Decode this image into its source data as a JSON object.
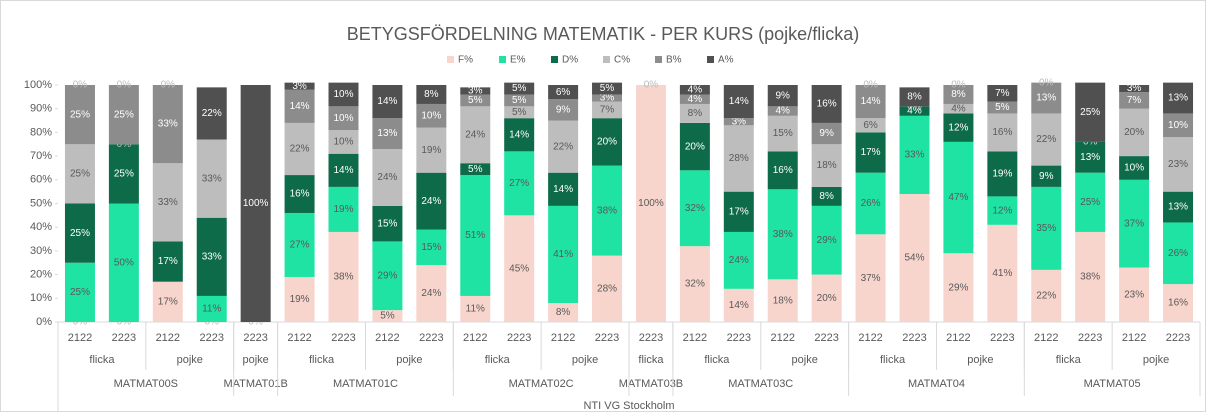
{
  "chart_data": {
    "type": "stacked_bar",
    "title": "BETYGSFÖRDELNING MATEMATIK - PER KURS (pojke/flicka)",
    "categories": [
      {
        "course": "MATMAT00S",
        "gender": "flicka",
        "year": "2122"
      },
      {
        "course": "MATMAT00S",
        "gender": "flicka",
        "year": "2223"
      },
      {
        "course": "MATMAT00S",
        "gender": "pojke",
        "year": "2122"
      },
      {
        "course": "MATMAT00S",
        "gender": "pojke",
        "year": "2223"
      },
      {
        "course": "MATMAT01B",
        "gender": "pojke",
        "year": "2223"
      },
      {
        "course": "MATMAT01C",
        "gender": "flicka",
        "year": "2122"
      },
      {
        "course": "MATMAT01C",
        "gender": "flicka",
        "year": "2223"
      },
      {
        "course": "MATMAT01C",
        "gender": "pojke",
        "year": "2122"
      },
      {
        "course": "MATMAT01C",
        "gender": "pojke",
        "year": "2223"
      },
      {
        "course": "MATMAT02C",
        "gender": "flicka",
        "year": "2122"
      },
      {
        "course": "MATMAT02C",
        "gender": "flicka",
        "year": "2223"
      },
      {
        "course": "MATMAT02C",
        "gender": "pojke",
        "year": "2122"
      },
      {
        "course": "MATMAT02C",
        "gender": "pojke",
        "year": "2223"
      },
      {
        "course": "MATMAT03B",
        "gender": "flicka",
        "year": "2223"
      },
      {
        "course": "MATMAT03C",
        "gender": "flicka",
        "year": "2122"
      },
      {
        "course": "MATMAT03C",
        "gender": "flicka",
        "year": "2223"
      },
      {
        "course": "MATMAT03C",
        "gender": "pojke",
        "year": "2122"
      },
      {
        "course": "MATMAT03C",
        "gender": "pojke",
        "year": "2223"
      },
      {
        "course": "MATMAT04",
        "gender": "flicka",
        "year": "2122"
      },
      {
        "course": "MATMAT04",
        "gender": "flicka",
        "year": "2223"
      },
      {
        "course": "MATMAT04",
        "gender": "pojke",
        "year": "2122"
      },
      {
        "course": "MATMAT04",
        "gender": "pojke",
        "year": "2223"
      },
      {
        "course": "MATMAT05",
        "gender": "flicka",
        "year": "2122"
      },
      {
        "course": "MATMAT05",
        "gender": "flicka",
        "year": "2223"
      },
      {
        "course": "MATMAT05",
        "gender": "pojke",
        "year": "2122"
      },
      {
        "course": "MATMAT05",
        "gender": "pojke",
        "year": "2223"
      }
    ],
    "group_label": "NTI VG Stockholm",
    "series": [
      {
        "name": "F%",
        "color": "#f8d5cc",
        "values": [
          0,
          0,
          17,
          0,
          0,
          19,
          38,
          5,
          24,
          11,
          45,
          8,
          28,
          100,
          32,
          14,
          18,
          20,
          37,
          54,
          29,
          41,
          22,
          38,
          23,
          16
        ],
        "value_labels": [
          "0%",
          "0%",
          "17%",
          "0%",
          "0%",
          "19%",
          "38%",
          "5%",
          "24%",
          "11%",
          "45%",
          "8%",
          "28%",
          "100%",
          "32%",
          "14%",
          "18%",
          "20%",
          "37%",
          "54%",
          "29%",
          "41%",
          "22%",
          "38%",
          "23%",
          "16%"
        ]
      },
      {
        "name": "E%",
        "color": "#1ee3a3",
        "values": [
          25,
          50,
          0,
          11,
          0,
          27,
          19,
          29,
          15,
          51,
          27,
          41,
          38,
          0,
          32,
          24,
          38,
          29,
          26,
          33,
          47,
          12,
          35,
          25,
          37,
          26
        ],
        "value_labels": [
          "25%",
          "50%",
          null,
          "11%",
          null,
          "27%",
          "19%",
          "29%",
          "15%",
          "51%",
          "27%",
          "41%",
          "38%",
          null,
          "32%",
          "24%",
          "38%",
          "29%",
          "26%",
          "33%",
          "47%",
          "12%",
          "35%",
          "25%",
          "37%",
          "26%"
        ]
      },
      {
        "name": "D%",
        "color": "#0e6b4a",
        "values": [
          25,
          25,
          17,
          33,
          0,
          16,
          14,
          15,
          24,
          5,
          14,
          14,
          20,
          0,
          20,
          17,
          16,
          8,
          17,
          4,
          12,
          19,
          9,
          13,
          10,
          13
        ],
        "value_labels": [
          "25%",
          "25%",
          "17%",
          "33%",
          null,
          "16%",
          "14%",
          "15%",
          "24%",
          "5%",
          "14%",
          "14%",
          "20%",
          null,
          "20%",
          "17%",
          "16%",
          "8%",
          "17%",
          "4%",
          "12%",
          "19%",
          "9%",
          "13%",
          "10%",
          "13%"
        ]
      },
      {
        "name": "C%",
        "color": "#bdbdbd",
        "values": [
          25,
          0,
          33,
          33,
          0,
          22,
          10,
          24,
          19,
          24,
          5,
          22,
          7,
          0,
          8,
          28,
          15,
          18,
          6,
          0,
          4,
          16,
          22,
          0,
          20,
          23
        ],
        "value_labels": [
          "25%",
          "0%",
          "33%",
          "33%",
          null,
          "22%",
          "10%",
          "24%",
          "19%",
          "24%",
          "5%",
          "22%",
          "7%",
          null,
          "8%",
          "28%",
          "15%",
          "18%",
          "6%",
          "0%",
          "4%",
          "16%",
          "22%",
          "0%",
          "20%",
          "23%"
        ]
      },
      {
        "name": "B%",
        "color": "#8c8c8c",
        "values": [
          25,
          25,
          33,
          0,
          0,
          14,
          10,
          13,
          10,
          5,
          5,
          9,
          3,
          0,
          4,
          3,
          4,
          9,
          14,
          0,
          8,
          5,
          13,
          0,
          7,
          10
        ],
        "value_labels": [
          "25%",
          "25%",
          "33%",
          "0%",
          null,
          "14%",
          "10%",
          "13%",
          "10%",
          "5%",
          "5%",
          "9%",
          "3%",
          null,
          "4%",
          "3%",
          "4%",
          "9%",
          "14%",
          "0%",
          "8%",
          "5%",
          "13%",
          "0%",
          "7%",
          "10%"
        ]
      },
      {
        "name": "A%",
        "color": "#505050",
        "values": [
          0,
          0,
          0,
          22,
          100,
          3,
          10,
          14,
          8,
          3,
          5,
          6,
          5,
          0,
          4,
          14,
          9,
          16,
          0,
          8,
          0,
          7,
          0,
          25,
          3,
          13
        ],
        "value_labels": [
          "0%",
          "0%",
          "0%",
          "22%",
          "100%",
          "3%",
          "10%",
          "14%",
          "8%",
          "3%",
          "5%",
          "6%",
          "5%",
          "0%",
          "4%",
          "14%",
          "9%",
          "16%",
          "0%",
          "8%",
          "0%",
          "7%",
          "0%",
          "25%",
          "3%",
          "13%"
        ]
      }
    ],
    "ylim": [
      0,
      100
    ],
    "yticks": [
      {
        "value": 0,
        "label": "0%"
      },
      {
        "value": 10,
        "label": "10%"
      },
      {
        "value": 20,
        "label": "20%"
      },
      {
        "value": 30,
        "label": "30%"
      },
      {
        "value": 40,
        "label": "40%"
      },
      {
        "value": 50,
        "label": "50%"
      },
      {
        "value": 60,
        "label": "60%"
      },
      {
        "value": 70,
        "label": "70%"
      },
      {
        "value": 80,
        "label": "80%"
      },
      {
        "value": 90,
        "label": "90%"
      },
      {
        "value": 100,
        "label": "100%"
      }
    ],
    "legend": "top"
  }
}
